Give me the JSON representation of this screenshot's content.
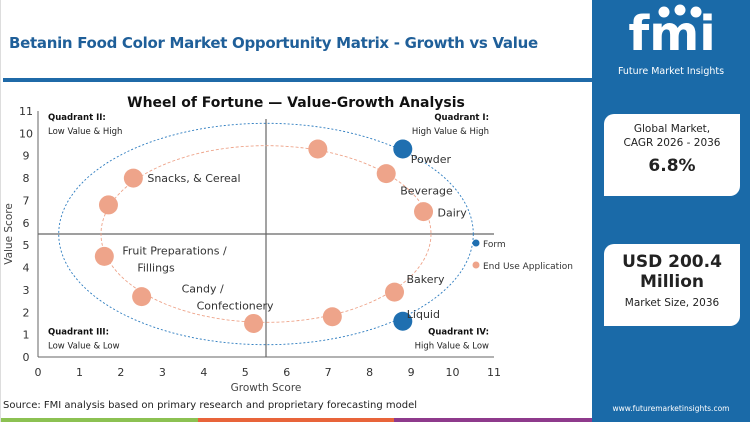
{
  "header": {
    "title": "Betanin Food Color Market Opportunity Matrix - Growth vs Value"
  },
  "source": "Source: FMI analysis based on primary research and proprietary forecasting model",
  "sidebar": {
    "logo_text": "fmi",
    "logo_subtitle": "Future Market Insights",
    "card1": {
      "label1": "Global Market,",
      "label2": "CAGR 2026 - 2036",
      "value": "6.8%"
    },
    "card2": {
      "value1": "USD 200.4",
      "value2": "Million",
      "label": "Market Size, 2036"
    },
    "url": "www.futuremarketinsights.com"
  },
  "colors": {
    "brand": "#1a6aa8",
    "form": "#1f6fb0",
    "end_use": "#eea48a",
    "stripes": [
      "#8cc152",
      "#e8643a",
      "#8e3a8c"
    ]
  },
  "chart_data": {
    "type": "scatter",
    "title": "Wheel of Fortune — Value-Growth  Analysis",
    "xlabel": "Growth Score",
    "ylabel": "Value Score",
    "xlim": [
      0,
      11
    ],
    "ylim": [
      0,
      11
    ],
    "xticks": [
      "0",
      "1",
      "2",
      "3",
      "4",
      "5",
      "6",
      "7",
      "8",
      "9",
      "10",
      "11"
    ],
    "yticks": [
      "0",
      "1",
      "2",
      "3",
      "4",
      "5",
      "6",
      "7",
      "8",
      "9",
      "10",
      "11"
    ],
    "grid": false,
    "dividers": {
      "x": 5.5,
      "y": 5.5
    },
    "quadrants": [
      {
        "name": "Quadrant II:",
        "desc": "Low Value & High"
      },
      {
        "name": "Quadrant I:",
        "desc": "High Value & High"
      },
      {
        "name": "Quadrant III:",
        "desc": "Low Value & Low"
      },
      {
        "name": "Quadrant IV:",
        "desc": "High Value & Low"
      }
    ],
    "legend": {
      "placement": "right",
      "entries": [
        "Form",
        "End Use Application"
      ]
    },
    "series": [
      {
        "name": "Form",
        "points": [
          {
            "x": 8.8,
            "y": 9.3,
            "label": "Powder"
          },
          {
            "x": 8.8,
            "y": 1.6,
            "label": "Liquid"
          }
        ]
      },
      {
        "name": "End Use Application",
        "points": [
          {
            "x": 6.75,
            "y": 9.3,
            "label": ""
          },
          {
            "x": 8.4,
            "y": 8.2,
            "label": "Beverage"
          },
          {
            "x": 9.3,
            "y": 6.5,
            "label": "Dairy"
          },
          {
            "x": 2.3,
            "y": 8.0,
            "label": "Snacks, & Cereal"
          },
          {
            "x": 1.7,
            "y": 6.8,
            "label": ""
          },
          {
            "x": 1.6,
            "y": 4.5,
            "label": "Fruit Preparations / Fillings"
          },
          {
            "x": 2.5,
            "y": 2.7,
            "label": "Candy / Confectionery"
          },
          {
            "x": 5.2,
            "y": 1.5,
            "label": ""
          },
          {
            "x": 7.1,
            "y": 1.8,
            "label": ""
          },
          {
            "x": 8.6,
            "y": 2.9,
            "label": "Bakery"
          }
        ]
      }
    ]
  }
}
